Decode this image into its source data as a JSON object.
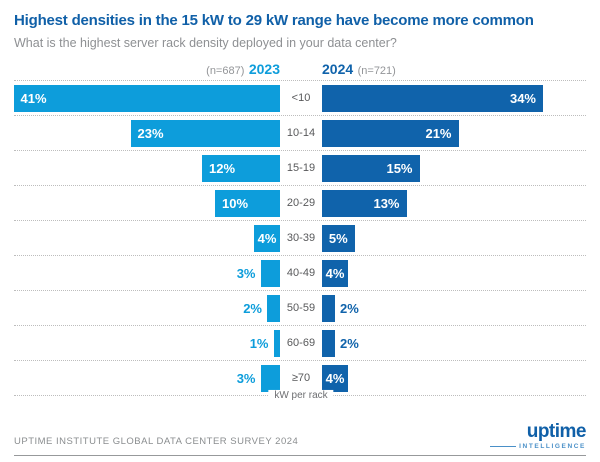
{
  "header": {
    "title": "Highest densities in the 15 kW to 29 kW range have become more common",
    "subtitle": "What is the highest server rack density deployed in your data center?"
  },
  "legend": {
    "left_sample": "(n=687)",
    "left_year": "2023",
    "right_year": "2024",
    "right_sample": "(n=721)"
  },
  "chart_data": {
    "type": "bar",
    "variant": "butterfly-horizontal",
    "title": "Highest densities in the 15 kW to 29 kW range have become more common",
    "subtitle": "What is the highest server rack density deployed in your data center?",
    "categories": [
      "<10",
      "10-14",
      "15-19",
      "20-29",
      "30-39",
      "40-49",
      "50-59",
      "60-69",
      "≥70"
    ],
    "series": [
      {
        "name": "2023",
        "sample": "(n=687)",
        "color": "#0D9DDB",
        "values": [
          41,
          23,
          12,
          10,
          4,
          3,
          2,
          1,
          3
        ],
        "labels": [
          "41%",
          "23%",
          "12%",
          "10%",
          "4%",
          "3%",
          "2%",
          "1%",
          "3%"
        ]
      },
      {
        "name": "2024",
        "sample": "(n=721)",
        "color": "#1063AB",
        "values": [
          34,
          21,
          15,
          13,
          5,
          4,
          2,
          2,
          4
        ],
        "labels": [
          "34%",
          "21%",
          "15%",
          "13%",
          "5%",
          "4%",
          "2%",
          "2%",
          "4%"
        ]
      }
    ],
    "xlabel": "kW per rack",
    "value_suffix": "%",
    "axis_max": 41,
    "grid": "dotted-row-separators",
    "legend_position": "top"
  },
  "footer": {
    "source": "UPTIME INSTITUTE GLOBAL DATA CENTER SURVEY 2024",
    "logo": {
      "wordmark": "uptime",
      "sub": "INTELLIGENCE"
    }
  },
  "colors": {
    "light_blue_2023": "#0D9DDB",
    "dark_blue_2024": "#1063AB",
    "title_blue": "#1060A8",
    "subtitle_gray": "#8E9093",
    "category_gray": "#58595B",
    "dotted_separator": "#BDBDBD",
    "footer_rule_gray": "#97999B",
    "background": "#FFFFFF"
  }
}
